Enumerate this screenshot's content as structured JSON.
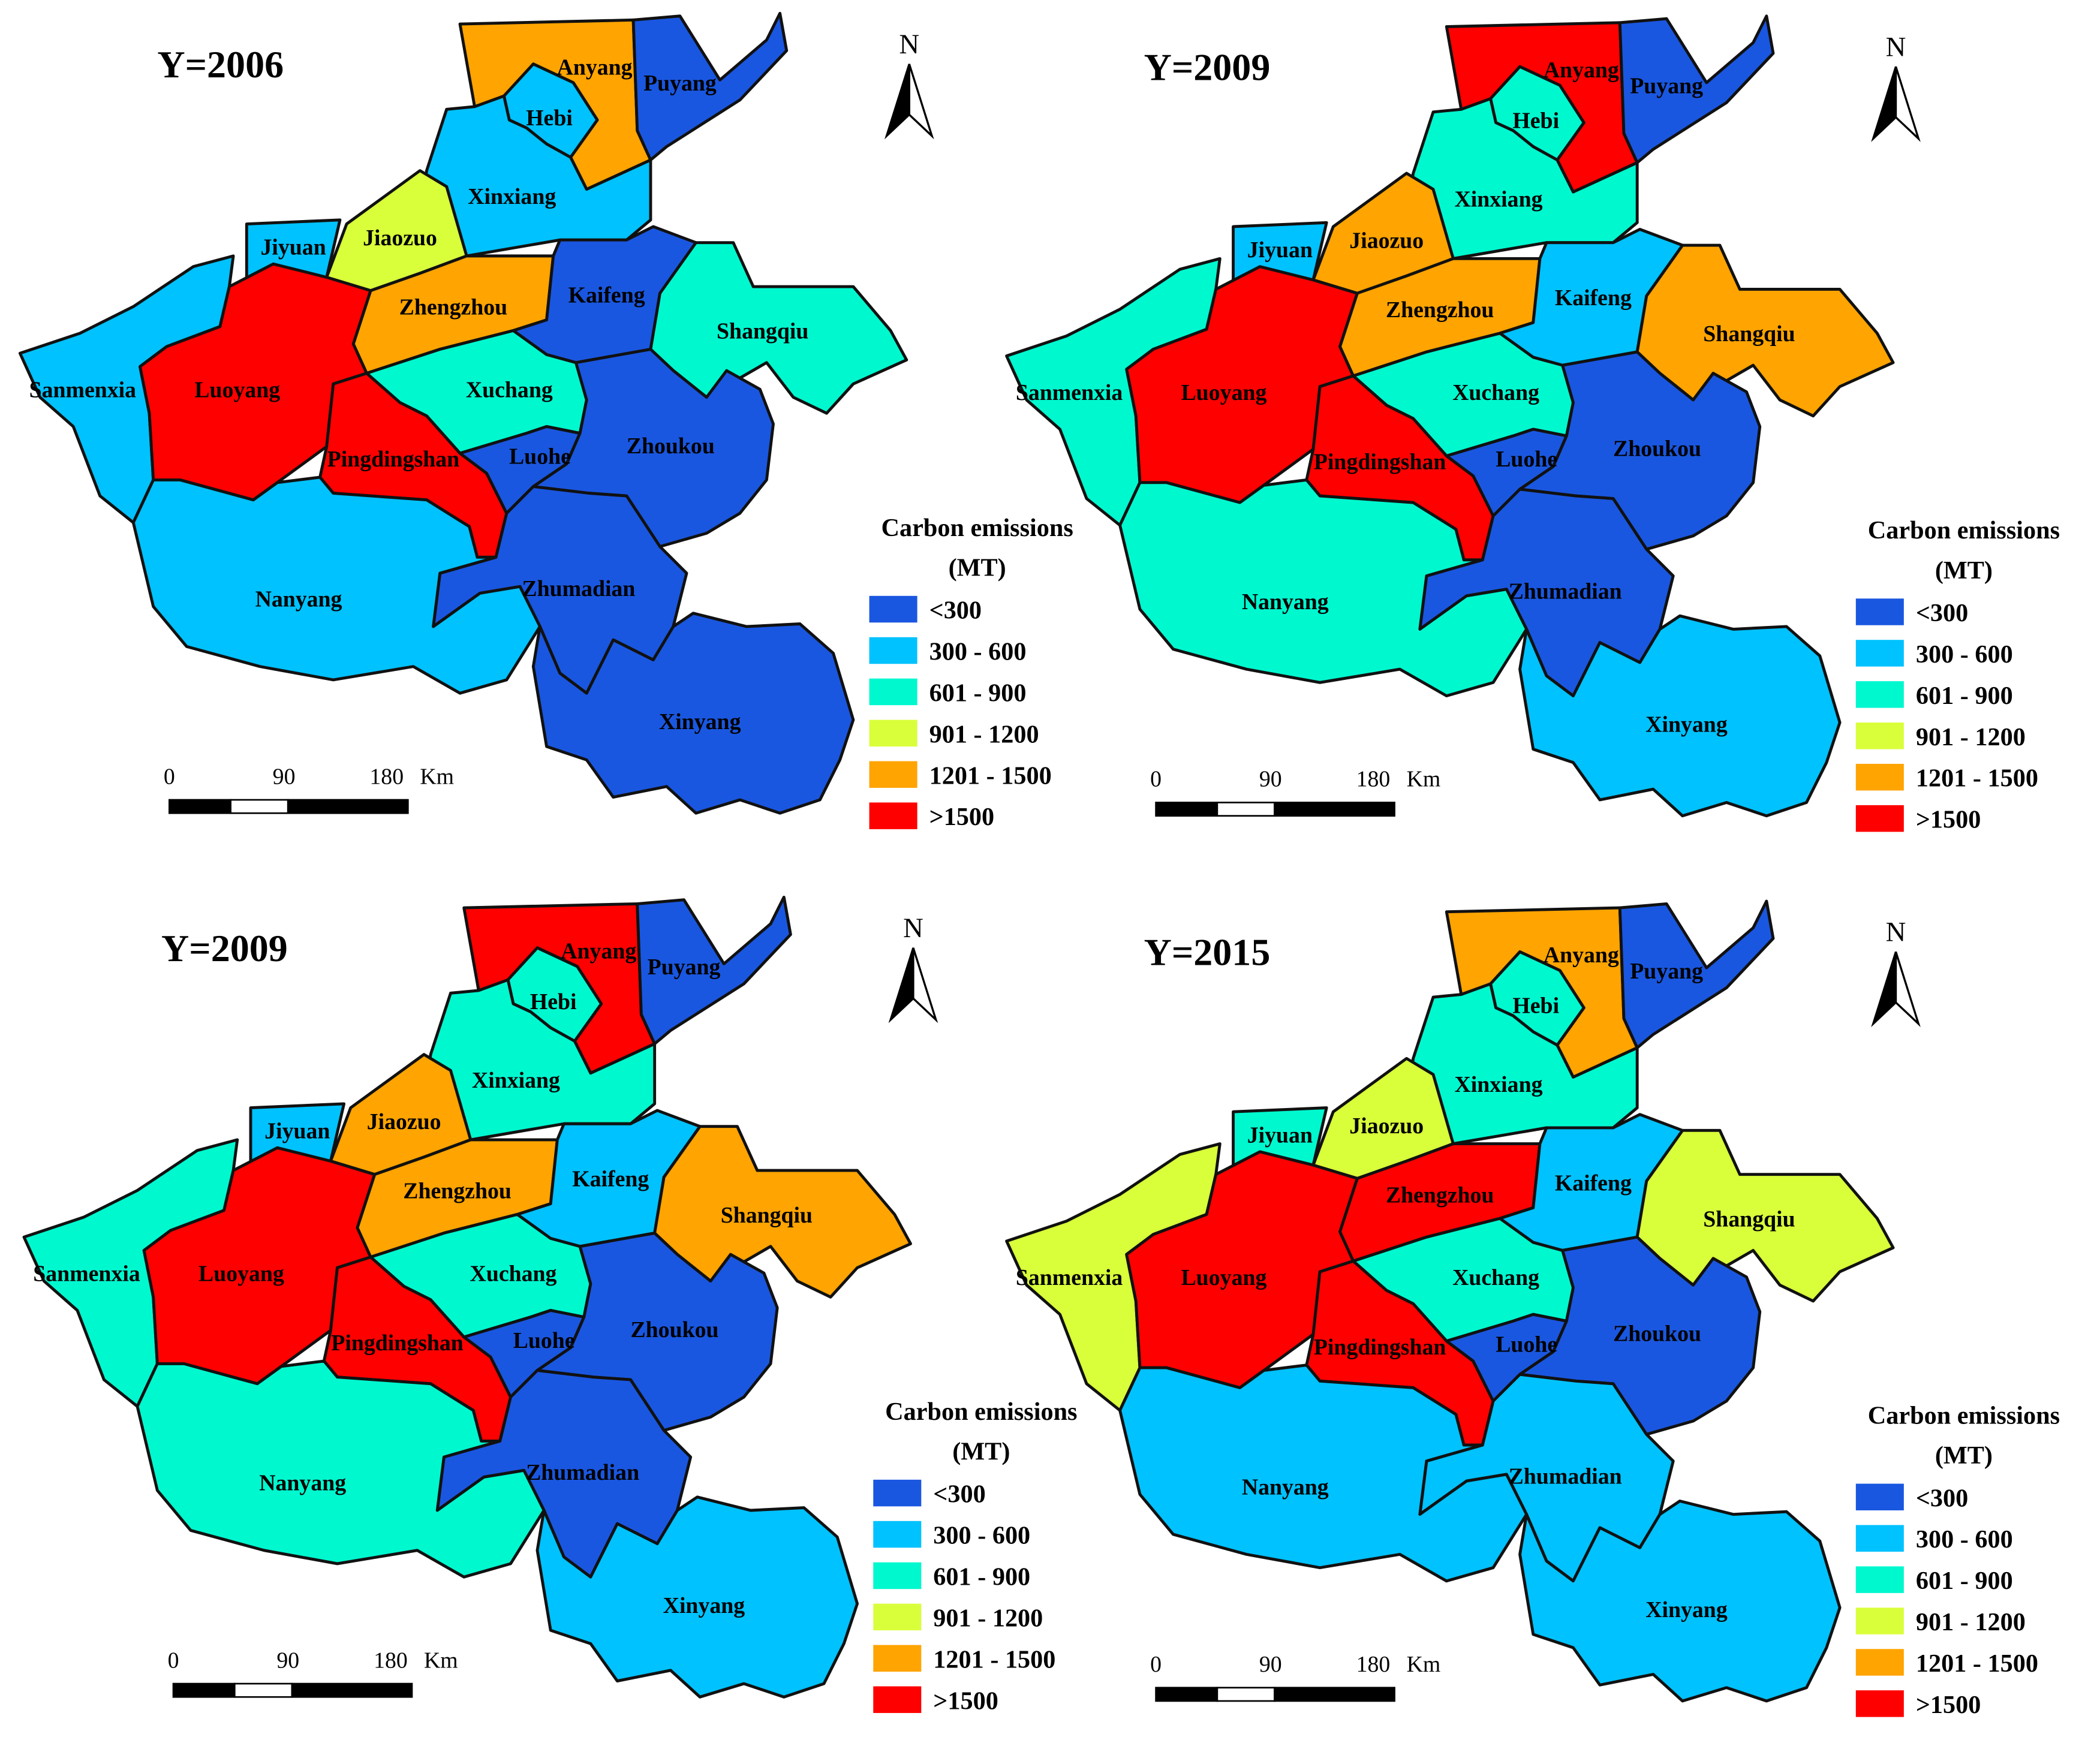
{
  "colors": {
    "lt300": "#1a57e0",
    "c300_600": "#00c2ff",
    "c601_900": "#00f8cf",
    "c901_1200": "#d9ff3a",
    "c1201_1500": "#ffa400",
    "gt1500": "#ff0000"
  },
  "legend": {
    "title_line1": "Carbon emissions",
    "title_line2": "(MT)",
    "classes": [
      {
        "key": "lt300",
        "label": "<300"
      },
      {
        "key": "c300_600",
        "label": "300 - 600"
      },
      {
        "key": "c601_900",
        "label": "601 - 900"
      },
      {
        "key": "c901_1200",
        "label": "901 - 1200"
      },
      {
        "key": "c1201_1500",
        "label": "1201 - 1500"
      },
      {
        "key": "gt1500",
        "label": ">1500"
      }
    ]
  },
  "scale_bar": {
    "ticks": [
      "0",
      "90",
      "180"
    ],
    "unit": "Km"
  },
  "north_arrow": {
    "letter": "N"
  },
  "cities": [
    "Anyang",
    "Puyang",
    "Hebi",
    "Xinxiang",
    "Jiaozuo",
    "Jiyuan",
    "Zhengzhou",
    "Kaifeng",
    "Shangqiu",
    "Sanmenxia",
    "Luoyang",
    "Xuchang",
    "Pingdingshan",
    "Luohe",
    "Zhoukou",
    "Zhumadian",
    "Nanyang",
    "Xinyang"
  ],
  "panels": [
    {
      "title": "Y=2006",
      "classes": {
        "Anyang": "c1201_1500",
        "Puyang": "lt300",
        "Hebi": "c300_600",
        "Xinxiang": "c300_600",
        "Jiaozuo": "c901_1200",
        "Jiyuan": "c300_600",
        "Zhengzhou": "c1201_1500",
        "Kaifeng": "lt300",
        "Shangqiu": "c601_900",
        "Sanmenxia": "c300_600",
        "Luoyang": "gt1500",
        "Xuchang": "c601_900",
        "Pingdingshan": "gt1500",
        "Luohe": "lt300",
        "Zhoukou": "lt300",
        "Zhumadian": "lt300",
        "Nanyang": "c300_600",
        "Xinyang": "lt300"
      }
    },
    {
      "title": "Y=2009",
      "classes": {
        "Anyang": "gt1500",
        "Puyang": "lt300",
        "Hebi": "c601_900",
        "Xinxiang": "c601_900",
        "Jiaozuo": "c1201_1500",
        "Jiyuan": "c300_600",
        "Zhengzhou": "c1201_1500",
        "Kaifeng": "c300_600",
        "Shangqiu": "c1201_1500",
        "Sanmenxia": "c601_900",
        "Luoyang": "gt1500",
        "Xuchang": "c601_900",
        "Pingdingshan": "gt1500",
        "Luohe": "lt300",
        "Zhoukou": "lt300",
        "Zhumadian": "lt300",
        "Nanyang": "c601_900",
        "Xinyang": "c300_600"
      }
    },
    {
      "title": "Y=2009",
      "classes": {
        "Anyang": "gt1500",
        "Puyang": "lt300",
        "Hebi": "c601_900",
        "Xinxiang": "c601_900",
        "Jiaozuo": "c1201_1500",
        "Jiyuan": "c300_600",
        "Zhengzhou": "c1201_1500",
        "Kaifeng": "c300_600",
        "Shangqiu": "c1201_1500",
        "Sanmenxia": "c601_900",
        "Luoyang": "gt1500",
        "Xuchang": "c601_900",
        "Pingdingshan": "gt1500",
        "Luohe": "lt300",
        "Zhoukou": "lt300",
        "Zhumadian": "lt300",
        "Nanyang": "c601_900",
        "Xinyang": "c300_600"
      }
    },
    {
      "title": "Y=2015",
      "classes": {
        "Anyang": "c1201_1500",
        "Puyang": "lt300",
        "Hebi": "c601_900",
        "Xinxiang": "c601_900",
        "Jiaozuo": "c901_1200",
        "Jiyuan": "c601_900",
        "Zhengzhou": "gt1500",
        "Kaifeng": "c300_600",
        "Shangqiu": "c901_1200",
        "Sanmenxia": "c901_1200",
        "Luoyang": "gt1500",
        "Xuchang": "c601_900",
        "Pingdingshan": "gt1500",
        "Luohe": "lt300",
        "Zhoukou": "lt300",
        "Zhumadian": "c300_600",
        "Nanyang": "c300_600",
        "Xinyang": "c300_600"
      }
    }
  ]
}
